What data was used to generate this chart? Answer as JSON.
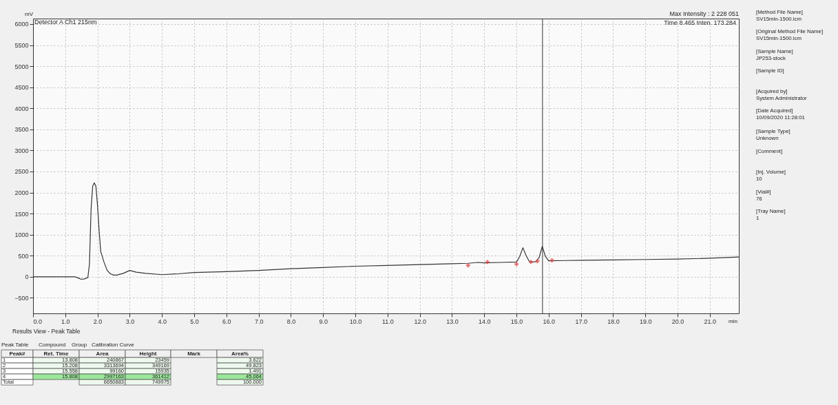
{
  "chart_data": {
    "type": "line",
    "xlabel": "min",
    "ylabel": "mV",
    "xlim": [
      0,
      21.9
    ],
    "ylim": [
      -870,
      6130
    ],
    "xticks": [
      {
        "value": 0,
        "label": "0.0"
      },
      {
        "value": 1,
        "label": "1.0"
      },
      {
        "value": 2,
        "label": "2.0"
      },
      {
        "value": 3,
        "label": "3.0"
      },
      {
        "value": 4,
        "label": "4.0"
      },
      {
        "value": 5,
        "label": "5.0"
      },
      {
        "value": 6,
        "label": "6.0"
      },
      {
        "value": 7,
        "label": "7.0"
      },
      {
        "value": 8,
        "label": "8.0"
      },
      {
        "value": 9,
        "label": "9.0"
      },
      {
        "value": 10,
        "label": "10.0"
      },
      {
        "value": 11,
        "label": "11.0"
      },
      {
        "value": 12,
        "label": "12.0"
      },
      {
        "value": 13,
        "label": "13.0"
      },
      {
        "value": 14,
        "label": "14.0"
      },
      {
        "value": 15,
        "label": "15.0"
      },
      {
        "value": 16,
        "label": "16.0"
      },
      {
        "value": 17,
        "label": "17.0"
      },
      {
        "value": 18,
        "label": "18.0"
      },
      {
        "value": 19,
        "label": "19.0"
      },
      {
        "value": 20,
        "label": "20.0"
      },
      {
        "value": 21,
        "label": "21.0"
      }
    ],
    "yticks": [
      -500,
      0,
      500,
      1000,
      1500,
      2000,
      2500,
      3000,
      3500,
      4000,
      4500,
      5000,
      5500,
      6000
    ],
    "grid": true,
    "series": [
      {
        "color": "#333333",
        "x": [
          0,
          1.3,
          1.4,
          1.5,
          1.6,
          1.7,
          1.75,
          1.8,
          1.85,
          1.9,
          1.95,
          2.0,
          2.05,
          2.1,
          2.2,
          2.3,
          2.4,
          2.5,
          2.6,
          2.8,
          3.0,
          3.2,
          3.5,
          4.0,
          4.5,
          5.0,
          6.0,
          7.0,
          8.0,
          9.0,
          10.0,
          11.0,
          12.0,
          13.0,
          13.5,
          13.8,
          14.0,
          14.5,
          15.0,
          15.1,
          15.2,
          15.3,
          15.4,
          15.5,
          15.6,
          15.7,
          15.8,
          15.9,
          16.0,
          16.5,
          17.0,
          18.0,
          19.0,
          20.0,
          21.0,
          21.9
        ],
        "values": [
          0,
          0,
          -30,
          -60,
          -50,
          -20,
          300,
          1600,
          2150,
          2230,
          2150,
          1700,
          1100,
          600,
          350,
          150,
          70,
          40,
          40,
          80,
          150,
          110,
          80,
          50,
          70,
          100,
          120,
          150,
          190,
          220,
          250,
          270,
          290,
          310,
          320,
          340,
          330,
          340,
          350,
          480,
          690,
          500,
          360,
          350,
          360,
          450,
          720,
          480,
          380,
          385,
          390,
          400,
          410,
          420,
          440,
          470
        ]
      },
      {
        "type": "scatter",
        "color": "#e03c3c",
        "x": [
          13.5,
          14.1,
          15.0,
          15.45,
          15.65,
          16.1
        ],
        "values": [
          270,
          350,
          300,
          350,
          370,
          390
        ]
      }
    ],
    "ref_lines": [
      {
        "axis": "x",
        "value": 15.808,
        "color": "#333333"
      }
    ],
    "annotations": [
      "Detector A Ch1 215nm",
      "Max Intensity : 2 228 051",
      "Time   8.465   Inten.          173.284",
      "[Method File Name]",
      "SV15min-1500.lcm",
      "[Original Method File Name]",
      "SV15min-1500.lcm",
      "[Sample Name]",
      "JP253-stock",
      "[Sample ID]",
      "[Acquired by]",
      "System Administrator",
      "[Date Acquired]",
      "10/09/2020 11:28:01",
      "[Sample Type]",
      "Unknown",
      "[Comment]",
      "[Inj. Volume]",
      "10",
      "[Vial#]",
      "76",
      "[Tray Name]",
      "1",
      "Results View - Peak Table",
      "Peak Table",
      "Compound",
      "Group",
      "Calibration Curve",
      "Peak#",
      "Ret. Time",
      "Area",
      "Height",
      "Mark",
      "Area%",
      "1",
      "13.808",
      "240867",
      "23459",
      "3.622",
      "2",
      "15.208",
      "3313694",
      "349169",
      "49.823",
      "3",
      "15.558",
      "99160",
      "15935",
      "1.491",
      "4",
      "15.808",
      "2997163",
      "361412",
      "45.064",
      "Total",
      "6650883",
      "749975",
      "100.000"
    ]
  }
}
